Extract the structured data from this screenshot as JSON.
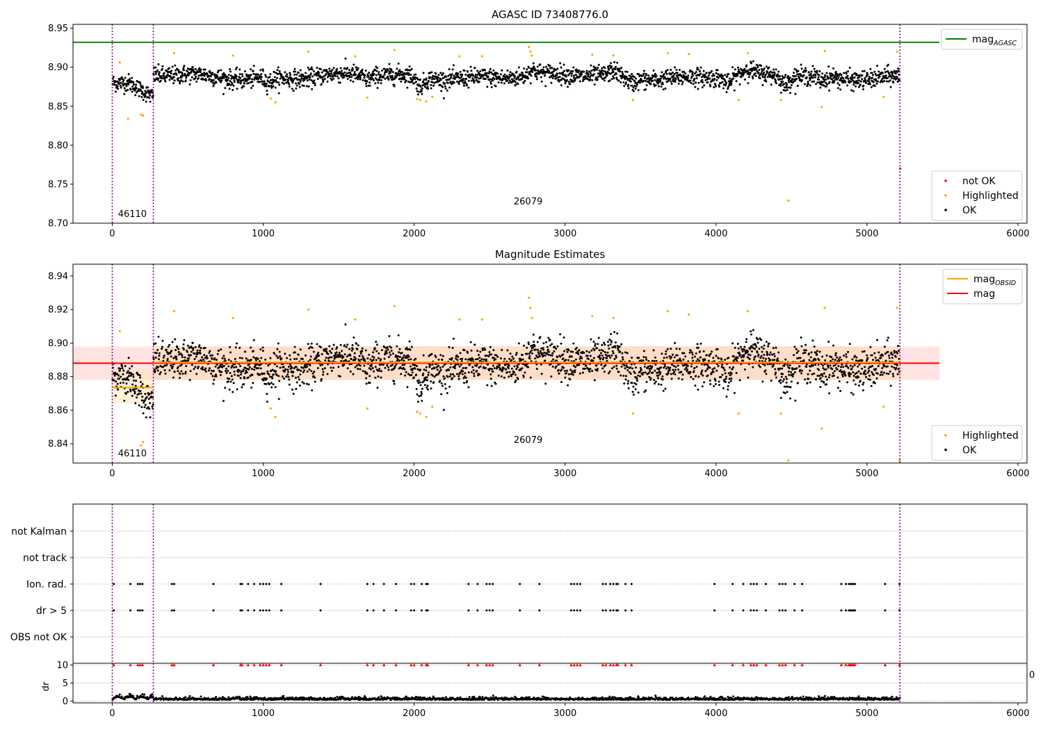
{
  "chart_data": [
    {
      "type": "scatter",
      "title": "AGASC ID 73408776.0",
      "xlabel": "",
      "ylabel": "",
      "xlim": [
        -260,
        6060
      ],
      "ylim": [
        8.7,
        8.955
      ],
      "x_ticks": [
        0,
        1000,
        2000,
        3000,
        4000,
        5000,
        6000
      ],
      "x_tick_labels": [
        "0",
        "1000",
        "2000",
        "3000",
        "4000",
        "5000",
        "6000"
      ],
      "y_ticks": [
        8.7,
        8.75,
        8.8,
        8.85,
        8.9,
        8.95
      ],
      "y_tick_labels": [
        "8.70",
        "8.75",
        "8.80",
        "8.85",
        "8.90",
        "8.95"
      ],
      "grid": false,
      "obsid_boundaries": [
        0,
        272,
        5218
      ],
      "obsid_labels": [
        {
          "x": 38,
          "y": 8.708,
          "text": "46110"
        },
        {
          "x": 2660,
          "y": 8.724,
          "text": "26079"
        }
      ],
      "lines": [
        {
          "name": "mag_AGASC",
          "y": 8.932,
          "x_range": [
            -260,
            5480
          ],
          "color": "#008000"
        }
      ],
      "series": [
        {
          "name": "not OK",
          "color": "#ff0000",
          "points": [
            [
              5220,
              8.77
            ]
          ]
        },
        {
          "name": "Highlighted",
          "color": "#ffa500",
          "points": [
            [
              50,
              8.906
            ],
            [
              105,
              8.834
            ],
            [
              190,
              8.839
            ],
            [
              205,
              8.838
            ],
            [
              410,
              8.918
            ],
            [
              800,
              8.915
            ],
            [
              1050,
              8.86
            ],
            [
              1080,
              8.855
            ],
            [
              1300,
              8.92
            ],
            [
              1610,
              8.914
            ],
            [
              1690,
              8.861
            ],
            [
              1870,
              8.922
            ],
            [
              2020,
              8.859
            ],
            [
              2040,
              8.858
            ],
            [
              2080,
              8.856
            ],
            [
              2120,
              8.862
            ],
            [
              2300,
              8.914
            ],
            [
              2450,
              8.914
            ],
            [
              2760,
              8.926
            ],
            [
              2770,
              8.92
            ],
            [
              2780,
              8.915
            ],
            [
              3180,
              8.916
            ],
            [
              3320,
              8.915
            ],
            [
              3450,
              8.858
            ],
            [
              3680,
              8.918
            ],
            [
              3820,
              8.917
            ],
            [
              4150,
              8.858
            ],
            [
              4210,
              8.918
            ],
            [
              4430,
              8.858
            ],
            [
              4480,
              8.729
            ],
            [
              4700,
              8.849
            ],
            [
              4720,
              8.921
            ],
            [
              5110,
              8.862
            ],
            [
              5200,
              8.92
            ]
          ]
        },
        {
          "name": "OK",
          "color": "#000000",
          "generated": true
        }
      ],
      "legend": [
        {
          "label": "mag",
          "sub": "AGASC",
          "kind": "line",
          "color": "#008000",
          "placement": "upper right"
        },
        {
          "label": "not OK",
          "kind": "dot",
          "color": "#ff0000",
          "placement": "lower right"
        },
        {
          "label": "Highlighted",
          "kind": "dot",
          "color": "#ffa500",
          "placement": "lower right"
        },
        {
          "label": "OK",
          "kind": "dot",
          "color": "#000000",
          "placement": "lower right"
        }
      ]
    },
    {
      "type": "scatter",
      "title": "Magnitude Estimates",
      "xlabel": "",
      "ylabel": "",
      "xlim": [
        -260,
        6060
      ],
      "ylim": [
        8.8285,
        8.947
      ],
      "x_ticks": [
        0,
        1000,
        2000,
        3000,
        4000,
        5000,
        6000
      ],
      "x_tick_labels": [
        "0",
        "1000",
        "2000",
        "3000",
        "4000",
        "5000",
        "6000"
      ],
      "y_ticks": [
        8.84,
        8.86,
        8.88,
        8.9,
        8.92,
        8.94
      ],
      "y_tick_labels": [
        "8.84",
        "8.86",
        "8.88",
        "8.90",
        "8.92",
        "8.94"
      ],
      "grid": false,
      "obsid_boundaries": [
        0,
        272,
        5218
      ],
      "obsid_labels": [
        {
          "x": 38,
          "y": 8.8325,
          "text": "46110"
        },
        {
          "x": 2660,
          "y": 8.8405,
          "text": "26079"
        }
      ],
      "bands": [
        {
          "y0": 8.878,
          "y1": 8.898,
          "x_range": [
            -260,
            5480
          ],
          "color": "#ffc0c0",
          "opacity": 0.45
        },
        {
          "y0": 8.864,
          "y1": 8.884,
          "x_range": [
            0,
            272
          ],
          "color": "#ffe4b5",
          "opacity": 0.5
        },
        {
          "y0": 8.878,
          "y1": 8.898,
          "x_range": [
            272,
            5218
          ],
          "color": "#ffdab0",
          "opacity": 0.5
        }
      ],
      "lines": [
        {
          "name": "mag",
          "y": 8.888,
          "x_range": [
            -260,
            5480
          ],
          "color": "#ff0000"
        },
        {
          "name": "mag_OBSID",
          "y": 8.8735,
          "x_range": [
            0,
            272
          ],
          "color": "#ffa500"
        },
        {
          "name": "mag_OBSID",
          "y": 8.8885,
          "x_range": [
            272,
            5218
          ],
          "color": "#ffa500"
        }
      ],
      "series": [
        {
          "name": "Highlighted",
          "color": "#ffa500",
          "points": [
            [
              50,
              8.907
            ],
            [
              190,
              8.839
            ],
            [
              205,
              8.841
            ],
            [
              410,
              8.919
            ],
            [
              800,
              8.915
            ],
            [
              1050,
              8.861
            ],
            [
              1080,
              8.856
            ],
            [
              1300,
              8.92
            ],
            [
              1610,
              8.914
            ],
            [
              1690,
              8.861
            ],
            [
              1870,
              8.922
            ],
            [
              2020,
              8.859
            ],
            [
              2040,
              8.858
            ],
            [
              2080,
              8.856
            ],
            [
              2120,
              8.862
            ],
            [
              2300,
              8.914
            ],
            [
              2450,
              8.914
            ],
            [
              2760,
              8.927
            ],
            [
              2770,
              8.921
            ],
            [
              2780,
              8.915
            ],
            [
              3180,
              8.916
            ],
            [
              3320,
              8.915
            ],
            [
              3450,
              8.858
            ],
            [
              3680,
              8.919
            ],
            [
              3820,
              8.917
            ],
            [
              4150,
              8.858
            ],
            [
              4210,
              8.919
            ],
            [
              4430,
              8.858
            ],
            [
              4480,
              8.83
            ],
            [
              4700,
              8.849
            ],
            [
              4720,
              8.921
            ],
            [
              5110,
              8.862
            ],
            [
              5200,
              8.921
            ],
            [
              5215,
              8.83
            ]
          ]
        },
        {
          "name": "OK",
          "color": "#000000",
          "generated": true
        }
      ],
      "legend": [
        {
          "label": "mag",
          "sub": "OBSID",
          "kind": "line",
          "color": "#ffa500",
          "placement": "upper right"
        },
        {
          "label": "mag",
          "kind": "line",
          "color": "#ff0000",
          "placement": "upper right"
        },
        {
          "label": "Highlighted",
          "kind": "dot",
          "color": "#ffa500",
          "placement": "lower right"
        },
        {
          "label": "OK",
          "kind": "dot",
          "color": "#000000",
          "placement": "lower right"
        }
      ]
    },
    {
      "type": "scatter",
      "title": "",
      "xlabel": "",
      "ylabel": "",
      "xlim": [
        -260,
        6060
      ],
      "categories": [
        "OBS not OK",
        "dr > 5",
        "Ion. rad.",
        "not track",
        "not Kalman"
      ],
      "grid": true,
      "obsid_boundaries": [
        0,
        272,
        5218
      ],
      "series": [
        {
          "name": "dr > 5",
          "color": "#000000",
          "x": [
            10,
            120,
            170,
            185,
            200,
            395,
            410,
            670,
            850,
            860,
            900,
            940,
            980,
            1000,
            1020,
            1040,
            1120,
            1380,
            1690,
            1730,
            1800,
            1880,
            1980,
            2000,
            2050,
            2080,
            2090,
            2360,
            2420,
            2480,
            2500,
            2520,
            2700,
            2830,
            3040,
            3060,
            3080,
            3100,
            3250,
            3270,
            3300,
            3320,
            3340,
            3350,
            3400,
            3440,
            3990,
            4110,
            4180,
            4230,
            4250,
            4270,
            4330,
            4420,
            4440,
            4460,
            4520,
            4570,
            4830,
            4860,
            4880,
            4890,
            4900,
            4910,
            4920,
            5120,
            5215
          ]
        },
        {
          "name": "Ion. rad.",
          "color": "#000000",
          "x": [
            10,
            120,
            170,
            185,
            200,
            395,
            410,
            670,
            850,
            860,
            900,
            940,
            980,
            1000,
            1020,
            1040,
            1120,
            1380,
            1690,
            1730,
            1800,
            1880,
            1980,
            2000,
            2050,
            2080,
            2090,
            2360,
            2420,
            2480,
            2500,
            2520,
            2700,
            2830,
            3040,
            3060,
            3080,
            3100,
            3250,
            3270,
            3300,
            3320,
            3340,
            3350,
            3400,
            3440,
            3990,
            4110,
            4180,
            4230,
            4250,
            4270,
            4330,
            4420,
            4440,
            4460,
            4520,
            4570,
            4830,
            4860,
            4880,
            4890,
            4900,
            4910,
            4920,
            5120,
            5215
          ]
        }
      ]
    },
    {
      "type": "scatter",
      "title": "",
      "xlabel": "",
      "ylabel": "dr",
      "xlim": [
        -260,
        6060
      ],
      "ylim": [
        -0.5,
        10.5
      ],
      "x_ticks": [
        0,
        1000,
        2000,
        3000,
        4000,
        5000,
        6000
      ],
      "x_tick_labels": [
        "0",
        "1000",
        "2000",
        "3000",
        "4000",
        "5000",
        "6000"
      ],
      "y_ticks": [
        0,
        5,
        10
      ],
      "y_tick_labels": [
        "0",
        "5",
        "10"
      ],
      "grid": true,
      "obsid_boundaries": [
        0,
        272,
        5218
      ],
      "clipped_marker": {
        "y": 10,
        "color": "#ff0000",
        "shape": "triangle-up"
      },
      "series": [
        {
          "name": "dr",
          "color": "#000000",
          "generated": true
        }
      ],
      "stray_tick_label": "0"
    }
  ]
}
